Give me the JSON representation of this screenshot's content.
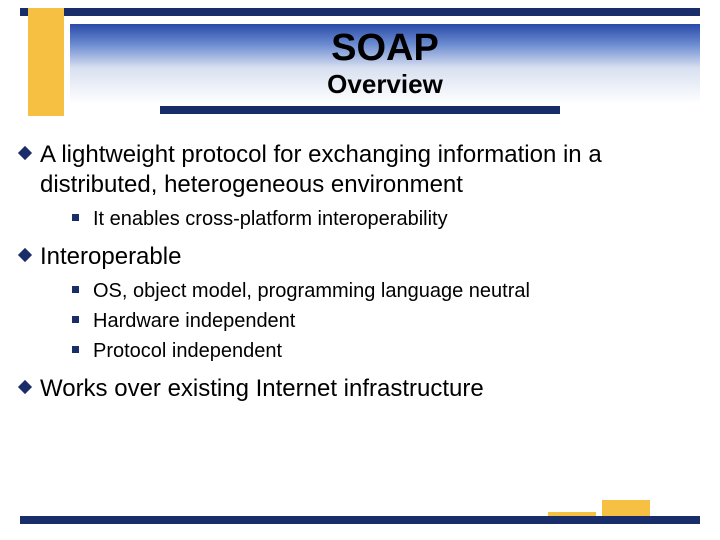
{
  "colors": {
    "navy": "#1a2d6b",
    "gold": "#f6c043",
    "gradient_top": "#2a4aa8",
    "gradient_mid": "#6a8ad0",
    "gradient_low": "#d8e0f0",
    "background": "#ffffff",
    "text": "#000000"
  },
  "header": {
    "title": "SOAP",
    "subtitle": "Overview"
  },
  "bullets": [
    {
      "text": "A lightweight protocol for exchanging information in a distributed, heterogeneous environment",
      "sub": [
        "It enables cross-platform interoperability"
      ]
    },
    {
      "text": "Interoperable",
      "sub": [
        "OS, object model, programming language neutral",
        "Hardware independent",
        "Protocol independent"
      ]
    },
    {
      "text": "Works over existing Internet infrastructure",
      "sub": []
    }
  ],
  "typography": {
    "title_fontsize": 38,
    "subtitle_fontsize": 26,
    "main_bullet_fontsize": 24,
    "sub_bullet_fontsize": 20,
    "font_family": "Arial"
  }
}
